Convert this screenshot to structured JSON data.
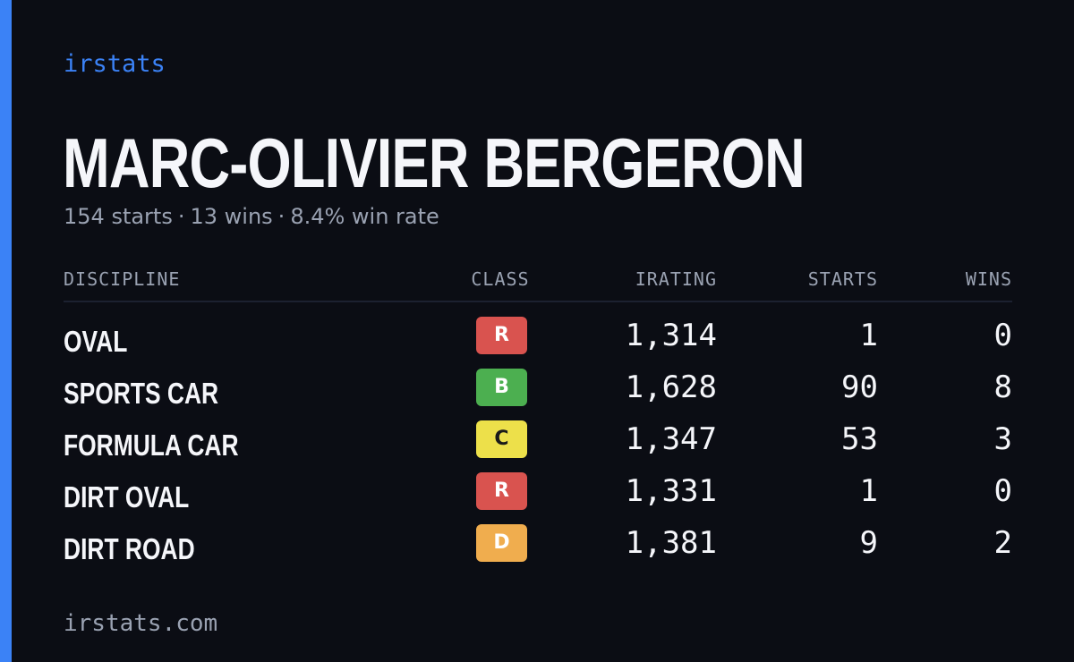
{
  "brand": "irstats",
  "driver": {
    "name": "MARC-OLIVIER BERGERON",
    "summary": {
      "starts": "154 starts",
      "wins": "13 wins",
      "win_rate": "8.4% win rate",
      "separator": "·"
    }
  },
  "table": {
    "headers": {
      "discipline": "DISCIPLINE",
      "class": "CLASS",
      "irating": "IRATING",
      "starts": "STARTS",
      "wins": "WINS"
    },
    "rows": [
      {
        "discipline": "OVAL",
        "class": "R",
        "irating": "1,314",
        "starts": "1",
        "wins": "0"
      },
      {
        "discipline": "SPORTS CAR",
        "class": "B",
        "irating": "1,628",
        "starts": "90",
        "wins": "8"
      },
      {
        "discipline": "FORMULA CAR",
        "class": "C",
        "irating": "1,347",
        "starts": "53",
        "wins": "3"
      },
      {
        "discipline": "DIRT OVAL",
        "class": "R",
        "irating": "1,331",
        "starts": "1",
        "wins": "0"
      },
      {
        "discipline": "DIRT ROAD",
        "class": "D",
        "irating": "1,381",
        "starts": "9",
        "wins": "2"
      }
    ]
  },
  "class_colors": {
    "R": "#d9534f",
    "B": "#4caf50",
    "C": "#ede04a",
    "D": "#f0ad4e"
  },
  "colors": {
    "background": "#0b0d14",
    "accent": "#3b82f6",
    "muted_text": "#9aa2b2"
  },
  "footer": {
    "url": "irstats.com"
  }
}
